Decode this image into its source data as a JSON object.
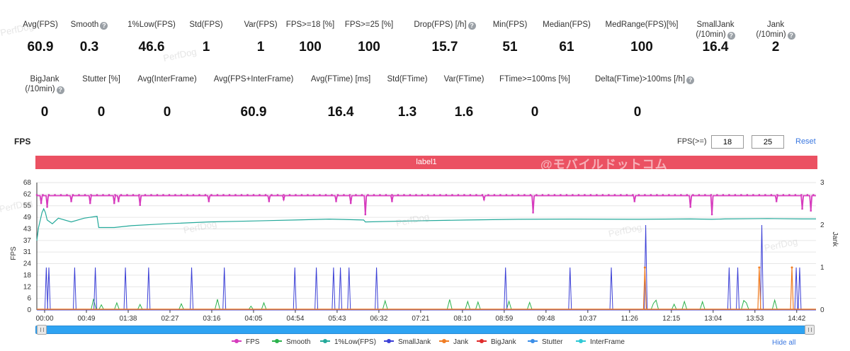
{
  "stats_row1": [
    {
      "label": "Avg(FPS)",
      "value": "60.9",
      "help": false
    },
    {
      "label": "Smooth",
      "value": "0.3",
      "help": true
    },
    {
      "label": "1%Low(FPS)",
      "value": "46.6",
      "help": false
    },
    {
      "label": "Std(FPS)",
      "value": "1",
      "help": false
    },
    {
      "label": "Var(FPS)",
      "value": "1",
      "help": false
    },
    {
      "label": "FPS>=18 [%]",
      "value": "100",
      "help": false
    },
    {
      "label": "FPS>=25 [%]",
      "value": "100",
      "help": false
    },
    {
      "label": "Drop(FPS) [/h]",
      "value": "15.7",
      "help": true
    },
    {
      "label": "Min(FPS)",
      "value": "51",
      "help": false
    },
    {
      "label": "Median(FPS)",
      "value": "61",
      "help": false
    },
    {
      "label": "MedRange(FPS)[%]",
      "value": "100",
      "help": false
    },
    {
      "label": "SmallJank|(/10min)",
      "value": "16.4",
      "help": true
    },
    {
      "label": "Jank|(/10min)",
      "value": "2",
      "help": true
    }
  ],
  "stats_row2": [
    {
      "label": "BigJank|(/10min)",
      "value": "0",
      "help": true
    },
    {
      "label": "Stutter [%]",
      "value": "0",
      "help": false
    },
    {
      "label": "Avg(InterFrame)",
      "value": "0",
      "help": false
    },
    {
      "label": "Avg(FPS+InterFrame)",
      "value": "60.9",
      "help": false
    },
    {
      "label": "Avg(FTime) [ms]",
      "value": "16.4",
      "help": false
    },
    {
      "label": "Std(FTime)",
      "value": "1.3",
      "help": false
    },
    {
      "label": "Var(FTime)",
      "value": "1.6",
      "help": false
    },
    {
      "label": "FTime>=100ms [%]",
      "value": "0",
      "help": false
    },
    {
      "label": "Delta(FTime)>100ms [/h]",
      "value": "0",
      "help": true
    }
  ],
  "chart_title": "FPS",
  "threshold": {
    "label": "FPS(>=)",
    "value1": "18",
    "value2": "25",
    "reset_label": "Reset"
  },
  "label_band": {
    "text": "label1",
    "watermark": "@モバイルドットコム"
  },
  "watermark_text": "PerfDog",
  "legend": {
    "items": [
      {
        "name": "FPS",
        "color": "#d63bbd"
      },
      {
        "name": "Smooth",
        "color": "#2bb24c"
      },
      {
        "name": "1%Low(FPS)",
        "color": "#24a99a"
      },
      {
        "name": "SmallJank",
        "color": "#3b3fd6"
      },
      {
        "name": "Jank",
        "color": "#f07d24"
      },
      {
        "name": "BigJank",
        "color": "#e02b2b"
      },
      {
        "name": "Stutter",
        "color": "#3b8ee8"
      },
      {
        "name": "InterFrame",
        "color": "#2fc9d6"
      }
    ],
    "hide_all_label": "Hide all"
  },
  "chart_data": {
    "type": "line",
    "ylabel": "FPS",
    "y2label": "Jank",
    "ylim": [
      0,
      68
    ],
    "y2lim": [
      0,
      3
    ],
    "y_ticks": [
      "0",
      "6",
      "12",
      "18",
      "24",
      "31",
      "37",
      "43",
      "49",
      "55",
      "62",
      "68"
    ],
    "y2_ticks": [
      "0",
      "1",
      "2",
      "3"
    ],
    "x_ticks": [
      "00:00",
      "00:49",
      "01:38",
      "02:27",
      "03:16",
      "04:05",
      "04:54",
      "05:43",
      "06:32",
      "07:21",
      "08:10",
      "08:59",
      "09:48",
      "10:37",
      "11:26",
      "12:15",
      "13:04",
      "13:53",
      "14:42"
    ],
    "x_range_seconds": [
      0,
      906
    ],
    "series": [
      {
        "name": "FPS",
        "color": "#d63bbd",
        "baseline": 61,
        "dips": [
          [
            5,
            57
          ],
          [
            12,
            55
          ],
          [
            62,
            57
          ],
          [
            90,
            57
          ],
          [
            95,
            58
          ],
          [
            120,
            56
          ],
          [
            200,
            58
          ],
          [
            287,
            59
          ],
          [
            348,
            58
          ],
          [
            365,
            57
          ],
          [
            382,
            51
          ],
          [
            413,
            58
          ],
          [
            520,
            59
          ],
          [
            577,
            52
          ],
          [
            695,
            58
          ],
          [
            760,
            55
          ],
          [
            785,
            51
          ],
          [
            890,
            54
          ],
          [
            900,
            53
          ],
          [
            860,
            58
          ],
          [
            270,
            58
          ],
          [
            40,
            58
          ]
        ]
      },
      {
        "name": "1%Low(FPS)",
        "color": "#24a99a",
        "points": [
          [
            0,
            37
          ],
          [
            2,
            44
          ],
          [
            4,
            48
          ],
          [
            6,
            52
          ],
          [
            8,
            54
          ],
          [
            10,
            52
          ],
          [
            12,
            48
          ],
          [
            18,
            46
          ],
          [
            25,
            49
          ],
          [
            40,
            47
          ],
          [
            55,
            49
          ],
          [
            70,
            50
          ],
          [
            72,
            44
          ],
          [
            90,
            44
          ],
          [
            110,
            45
          ],
          [
            150,
            46
          ],
          [
            200,
            47
          ],
          [
            250,
            47.5
          ],
          [
            300,
            48
          ],
          [
            340,
            48.5
          ],
          [
            380,
            48
          ],
          [
            382,
            47
          ],
          [
            430,
            47.5
          ],
          [
            500,
            48
          ],
          [
            560,
            48.4
          ],
          [
            620,
            48.5
          ],
          [
            700,
            48.4
          ],
          [
            760,
            48.6
          ],
          [
            785,
            48.4
          ],
          [
            800,
            48.6
          ],
          [
            850,
            48.8
          ],
          [
            890,
            48.6
          ],
          [
            906,
            48.6
          ]
        ]
      },
      {
        "name": "SmallJank",
        "color": "#3b3fd6",
        "spikes": [
          [
            11,
            1
          ],
          [
            14,
            1
          ],
          [
            44,
            1
          ],
          [
            68,
            1
          ],
          [
            103,
            1
          ],
          [
            130,
            1
          ],
          [
            180,
            1
          ],
          [
            218,
            1
          ],
          [
            300,
            1
          ],
          [
            325,
            1
          ],
          [
            345,
            1
          ],
          [
            353,
            1
          ],
          [
            363,
            1
          ],
          [
            395,
            1
          ],
          [
            545,
            1
          ],
          [
            620,
            1
          ],
          [
            668,
            1
          ],
          [
            805,
            1
          ],
          [
            815,
            1
          ],
          [
            883,
            1
          ],
          [
            887,
            1
          ],
          [
            920,
            0
          ]
        ],
        "tall_spikes": [
          [
            708,
            2
          ],
          [
            843,
            2
          ]
        ]
      },
      {
        "name": "Jank",
        "color": "#f07d24",
        "spikes": [
          [
            707,
            1
          ],
          [
            840,
            1
          ],
          [
            878,
            1
          ]
        ]
      },
      {
        "name": "Smooth",
        "color": "#2bb24c",
        "noise": true
      }
    ]
  }
}
